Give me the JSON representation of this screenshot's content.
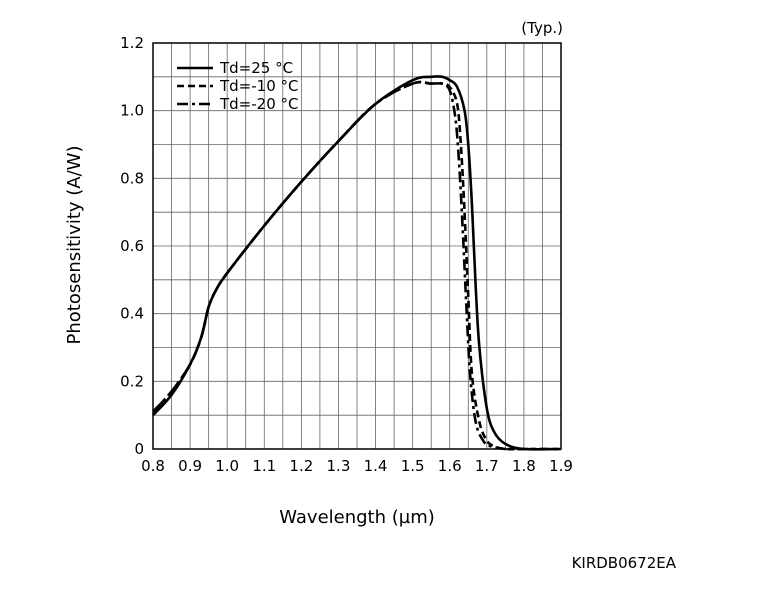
{
  "chart_data": {
    "type": "line",
    "annotation": "(Typ.)",
    "figure_code": "KIRDB0672EA",
    "xlabel": "Wavelength (µm)",
    "ylabel": "Photosensitivity (A/W)",
    "xlim": [
      0.8,
      1.9
    ],
    "ylim": [
      0,
      1.2
    ],
    "xticks": [
      0.8,
      0.9,
      1.0,
      1.1,
      1.2,
      1.3,
      1.4,
      1.5,
      1.6,
      1.7,
      1.8,
      1.9
    ],
    "xtick_labels": [
      "0.8",
      "0.9",
      "1.0",
      "1.1",
      "1.2",
      "1.3",
      "1.4",
      "1.5",
      "1.6",
      "1.7",
      "1.8",
      "1.9"
    ],
    "yticks": [
      0,
      0.2,
      0.4,
      0.6,
      0.8,
      1.0,
      1.2
    ],
    "ytick_labels": [
      "0",
      "0.2",
      "0.4",
      "0.6",
      "0.8",
      "1.0",
      "1.2"
    ],
    "grid": true,
    "legend_position": "top-left",
    "series": [
      {
        "name": "Td=25 °C",
        "style": "solid",
        "x": [
          0.8,
          0.85,
          0.9,
          0.93,
          0.95,
          0.97,
          1.0,
          1.1,
          1.2,
          1.3,
          1.4,
          1.5,
          1.55,
          1.58,
          1.6,
          1.62,
          1.64,
          1.65,
          1.66,
          1.67,
          1.68,
          1.7,
          1.72,
          1.75,
          1.8,
          1.9
        ],
        "y": [
          0.1,
          0.16,
          0.25,
          0.33,
          0.42,
          0.47,
          0.52,
          0.66,
          0.79,
          0.91,
          1.02,
          1.09,
          1.1,
          1.1,
          1.09,
          1.07,
          1.0,
          0.9,
          0.72,
          0.48,
          0.3,
          0.12,
          0.05,
          0.015,
          0.0,
          0.0
        ]
      },
      {
        "name": "Td=-10 °C",
        "style": "dashed",
        "x": [
          0.8,
          0.85,
          0.9,
          0.93,
          0.95,
          0.97,
          1.0,
          1.1,
          1.2,
          1.3,
          1.4,
          1.5,
          1.55,
          1.58,
          1.6,
          1.62,
          1.63,
          1.64,
          1.65,
          1.66,
          1.68,
          1.7,
          1.72,
          1.75,
          1.8,
          1.9
        ],
        "y": [
          0.11,
          0.17,
          0.25,
          0.33,
          0.42,
          0.47,
          0.52,
          0.66,
          0.79,
          0.91,
          1.02,
          1.08,
          1.08,
          1.08,
          1.07,
          1.02,
          0.9,
          0.7,
          0.45,
          0.22,
          0.08,
          0.025,
          0.008,
          0.0,
          0.0,
          0.0
        ]
      },
      {
        "name": "Td=-20 °C",
        "style": "dashdot",
        "x": [
          0.8,
          0.85,
          0.9,
          0.93,
          0.95,
          0.97,
          1.0,
          1.1,
          1.2,
          1.3,
          1.4,
          1.5,
          1.55,
          1.58,
          1.6,
          1.615,
          1.625,
          1.635,
          1.645,
          1.655,
          1.67,
          1.69,
          1.71,
          1.75,
          1.8,
          1.9
        ],
        "y": [
          0.11,
          0.17,
          0.25,
          0.33,
          0.42,
          0.47,
          0.52,
          0.66,
          0.79,
          0.91,
          1.02,
          1.08,
          1.08,
          1.08,
          1.06,
          0.98,
          0.85,
          0.65,
          0.42,
          0.22,
          0.08,
          0.025,
          0.008,
          0.0,
          0.0,
          0.0
        ]
      }
    ]
  }
}
